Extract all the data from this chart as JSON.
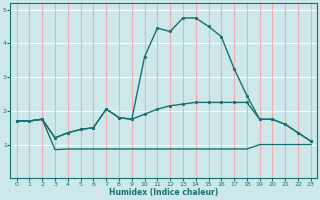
{
  "xlabel": "Humidex (Indice chaleur)",
  "bg_color": "#cce8ea",
  "grid_color_h": "#ffffff",
  "grid_color_v": "#f0b0b0",
  "line_color": "#1a7070",
  "xlim": [
    -0.5,
    23.5
  ],
  "ylim": [
    0,
    5.2
  ],
  "xticks": [
    0,
    1,
    2,
    3,
    4,
    5,
    6,
    7,
    8,
    9,
    10,
    11,
    12,
    13,
    14,
    15,
    16,
    17,
    18,
    19,
    20,
    21,
    22,
    23
  ],
  "yticks": [
    1,
    2,
    3,
    4,
    5
  ],
  "line1_x": [
    0,
    1,
    2,
    3,
    4,
    5,
    6,
    7,
    8,
    9,
    10,
    11,
    12,
    13,
    14,
    15,
    16,
    17,
    18,
    19,
    20,
    21,
    22,
    23
  ],
  "line1_y": [
    1.7,
    1.7,
    1.75,
    0.85,
    0.87,
    0.87,
    0.87,
    0.87,
    0.87,
    0.87,
    0.87,
    0.87,
    0.87,
    0.87,
    0.87,
    0.87,
    0.87,
    0.87,
    0.87,
    1.0,
    1.0,
    1.0,
    1.0,
    1.0
  ],
  "line2_x": [
    0,
    1,
    2,
    3,
    4,
    5,
    6,
    7,
    8,
    9,
    10,
    11,
    12,
    13,
    14,
    15,
    16,
    17,
    18,
    19,
    20,
    21,
    22,
    23
  ],
  "line2_y": [
    1.7,
    1.7,
    1.75,
    1.2,
    1.35,
    1.45,
    1.5,
    2.05,
    1.8,
    1.75,
    1.9,
    2.05,
    2.15,
    2.2,
    2.25,
    2.25,
    2.25,
    2.25,
    2.25,
    1.75,
    1.75,
    1.6,
    1.35,
    1.1
  ],
  "line3_x": [
    0,
    1,
    2,
    3,
    4,
    5,
    6,
    7,
    8,
    9,
    10,
    11,
    12,
    13,
    14,
    15,
    16,
    17,
    18,
    19,
    20,
    21,
    22,
    23
  ],
  "line3_y": [
    1.7,
    1.7,
    1.75,
    1.2,
    1.35,
    1.45,
    1.5,
    2.05,
    1.8,
    1.75,
    3.6,
    4.45,
    4.35,
    4.75,
    4.75,
    4.5,
    4.2,
    3.25,
    2.45,
    1.75,
    1.75,
    1.6,
    1.35,
    1.1
  ]
}
